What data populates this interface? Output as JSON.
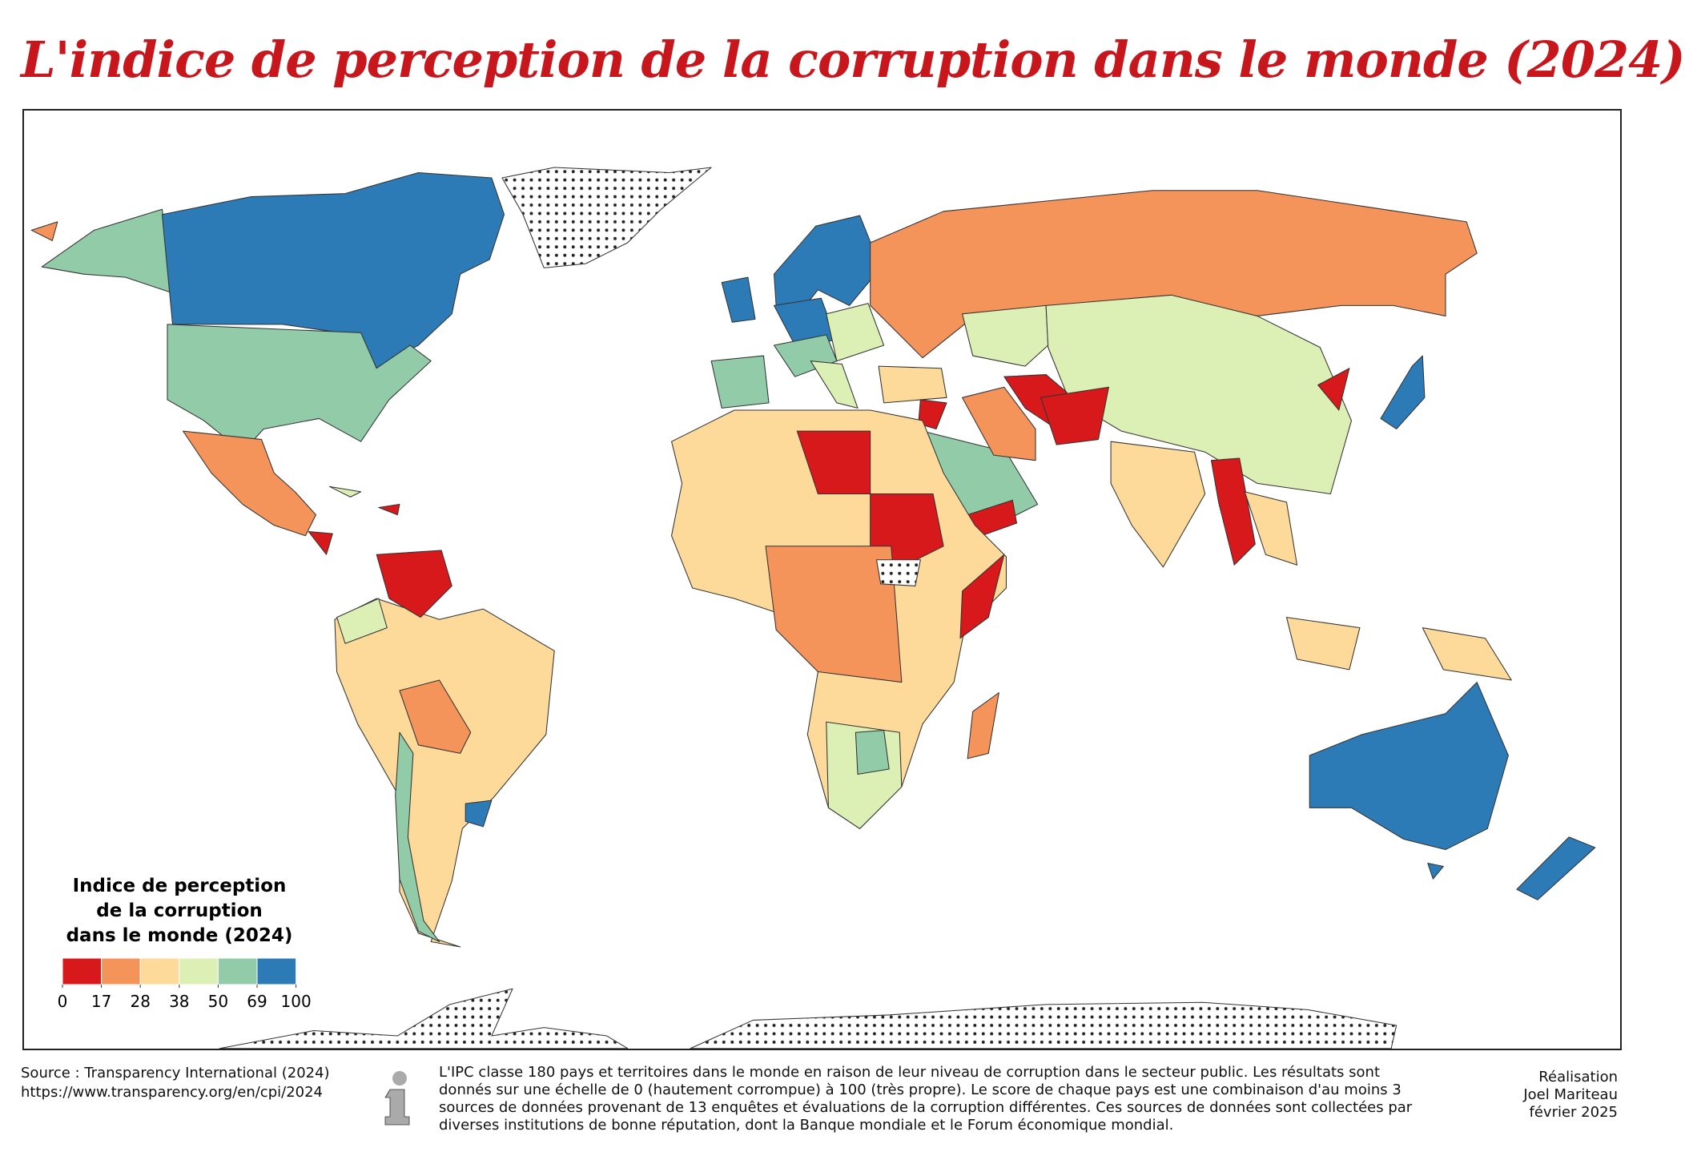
{
  "header": {
    "title": "L'indice de perception de la corruption dans le monde (2024)"
  },
  "legend": {
    "title": [
      "Indice de perception",
      "de la corruption",
      "dans le monde (2024)"
    ],
    "breaks": [
      0,
      17,
      28,
      38,
      50,
      69,
      100
    ],
    "colors": [
      "#d7191c",
      "#f4935a",
      "#fdd99a",
      "#dcefb4",
      "#91cba8",
      "#2c7bb6"
    ]
  },
  "footer": {
    "source": "Source : Transparency International (2024)",
    "url": "https://www.transparency.org/en/cpi/2024",
    "info": "L'IPC classe 180 pays et territoires dans le monde en raison de leur niveau de corruption dans le secteur public. Les résultats sont donnés sur une échelle de 0 (hautement corrompue) à 100 (très propre). Le score de chaque pays est une combinaison d'au moins 3 sources de données provenant de 13 enquêtes et évaluations de la corruption différentes. Ces sources de données sont collectées par diverses institutions de bonne réputation, dont la Banque mondiale et le Forum économique mondial.",
    "credits": [
      "Réalisation",
      "Joel Mariteau",
      "février 2025"
    ]
  }
}
